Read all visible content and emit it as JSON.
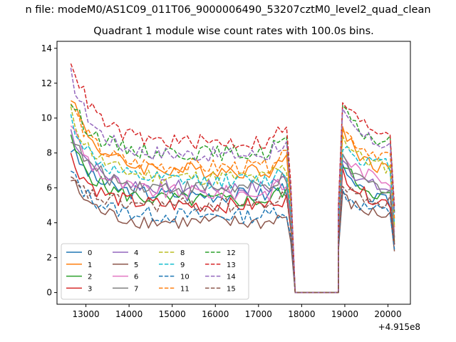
{
  "suptitle": "n file: modeM0/AS1C09_011T06_9000006490_53207cztM0_level2_quad_clean",
  "chart_data": {
    "type": "line",
    "title": "Quadrant 1 module wise count rates with 100.0s bins.",
    "x_offset_label": "+4.915e8",
    "x_offset": 491500000,
    "xlim": [
      12330,
      20520
    ],
    "ylim": [
      -0.67,
      14.4
    ],
    "xticks": [
      13000,
      14000,
      15000,
      16000,
      17000,
      18000,
      19000,
      20000
    ],
    "yticks": [
      0,
      2,
      4,
      6,
      8,
      10,
      12,
      14
    ],
    "grid": false,
    "legend_position": "lower-left",
    "legend_columns": 4,
    "bin_width": 100,
    "segments": [
      [
        12650,
        17750
      ],
      [
        18950,
        20150
      ]
    ],
    "gap": [
      17850,
      18850
    ],
    "series": [
      {
        "name": "0",
        "color": "#1f77b4",
        "dash": "solid",
        "peak": 8.3,
        "plateau": 5.6,
        "peak2": 7.0,
        "plateau2": 5.0
      },
      {
        "name": "1",
        "color": "#ff7f0e",
        "dash": "solid",
        "peak": 11.4,
        "plateau": 7.0,
        "peak2": 9.5,
        "plateau2": 6.8
      },
      {
        "name": "2",
        "color": "#2ca02c",
        "dash": "solid",
        "peak": 8.7,
        "plateau": 5.3,
        "peak2": 7.5,
        "plateau2": 5.3
      },
      {
        "name": "3",
        "color": "#d62728",
        "dash": "solid",
        "peak": 7.8,
        "plateau": 5.0,
        "peak2": 7.0,
        "plateau2": 5.0
      },
      {
        "name": "4",
        "color": "#9467bd",
        "dash": "solid",
        "peak": 9.3,
        "plateau": 6.0,
        "peak2": 7.8,
        "plateau2": 5.7
      },
      {
        "name": "5",
        "color": "#8c564b",
        "dash": "solid",
        "peak": 6.5,
        "plateau": 4.0,
        "peak2": 5.5,
        "plateau2": 4.3
      },
      {
        "name": "6",
        "color": "#e377c2",
        "dash": "solid",
        "peak": 9.8,
        "plateau": 5.7,
        "peak2": 8.0,
        "plateau2": 6.3
      },
      {
        "name": "7",
        "color": "#7f7f7f",
        "dash": "solid",
        "peak": 9.0,
        "plateau": 6.0,
        "peak2": 7.6,
        "plateau2": 5.8
      },
      {
        "name": "8",
        "color": "#bcbd22",
        "dash": "dashed",
        "peak": 10.3,
        "plateau": 6.6,
        "peak2": 9.0,
        "plateau2": 7.0
      },
      {
        "name": "9",
        "color": "#17becf",
        "dash": "dashed",
        "peak": 10.0,
        "plateau": 6.4,
        "peak2": 8.5,
        "plateau2": 7.2
      },
      {
        "name": "10",
        "color": "#1f77b4",
        "dash": "dashed",
        "peak": 6.9,
        "plateau": 4.4,
        "peak2": 5.8,
        "plateau2": 4.5
      },
      {
        "name": "11",
        "color": "#ff7f0e",
        "dash": "dashed",
        "peak": 10.9,
        "plateau": 7.2,
        "peak2": 9.5,
        "plateau2": 7.7
      },
      {
        "name": "12",
        "color": "#2ca02c",
        "dash": "dashed",
        "peak": 11.0,
        "plateau": 8.0,
        "peak2": 10.5,
        "plateau2": 8.4
      },
      {
        "name": "13",
        "color": "#d62728",
        "dash": "dashed",
        "peak": 13.5,
        "plateau": 8.6,
        "peak2": 11.0,
        "plateau2": 9.0
      },
      {
        "name": "14",
        "color": "#9467bd",
        "dash": "dashed",
        "peak": 12.5,
        "plateau": 7.9,
        "peak2": 10.2,
        "plateau2": 8.3
      },
      {
        "name": "15",
        "color": "#8c564b",
        "dash": "dashed",
        "peak": 6.4,
        "plateau": 5.0,
        "peak2": 6.1,
        "plateau2": 5.1
      }
    ]
  }
}
